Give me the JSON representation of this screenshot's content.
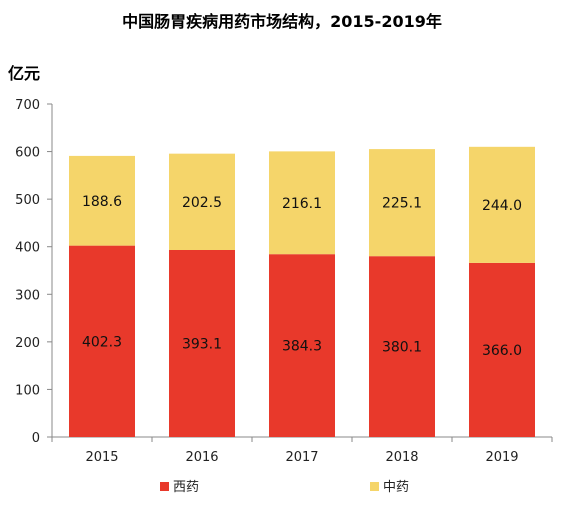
{
  "chart_data": {
    "type": "bar",
    "stacked": true,
    "title": "中国肠胃疾病用药市场结构，2015-2019年",
    "ylabel": "亿元",
    "xlabel": "",
    "categories": [
      "2015",
      "2016",
      "2017",
      "2018",
      "2019"
    ],
    "ylim": [
      0,
      700
    ],
    "yticks": [
      0,
      100,
      200,
      300,
      400,
      500,
      600,
      700
    ],
    "series": [
      {
        "name": "西药",
        "values": [
          402.3,
          393.1,
          384.3,
          380.1,
          366.0
        ],
        "labels": [
          "402.3",
          "393.1",
          "384.3",
          "380.1",
          "366.0"
        ],
        "color": "#e8392b"
      },
      {
        "name": "中药",
        "values": [
          188.6,
          202.5,
          216.1,
          225.1,
          244.0
        ],
        "labels": [
          "188.6",
          "202.5",
          "216.1",
          "225.1",
          "244.0"
        ],
        "color": "#f5d56a"
      }
    ],
    "legend_position": "bottom",
    "grid": false
  }
}
